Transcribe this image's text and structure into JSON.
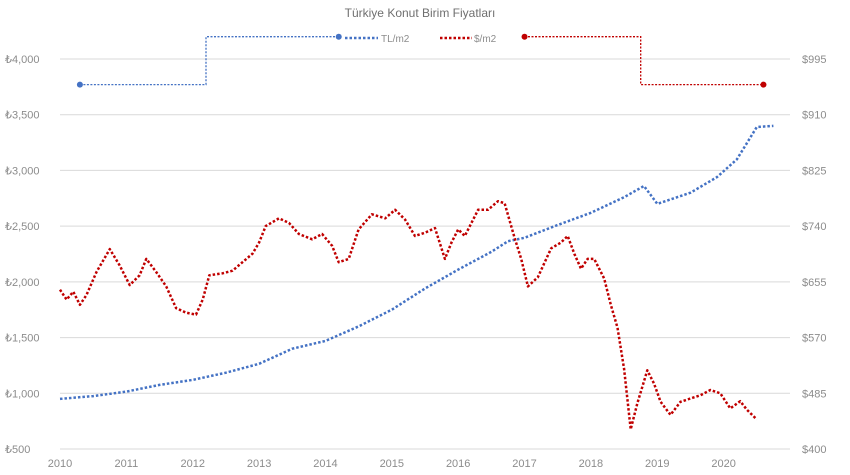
{
  "chart_data": {
    "type": "line",
    "title": "Türkiye Konut Birim Fiyatları",
    "legend_position": "top-center",
    "grid": true,
    "x_axis": {
      "ticks": [
        "2010",
        "2011",
        "2012",
        "2013",
        "2014",
        "2015",
        "2016",
        "2017",
        "2018",
        "2019",
        "2020"
      ],
      "range": [
        2010,
        2021
      ]
    },
    "y_left": {
      "range": [
        500,
        4000
      ],
      "ticks": [
        "₺500",
        "₺1,000",
        "₺1,500",
        "₺2,000",
        "₺2,500",
        "₺3,000",
        "₺3,500",
        "₺4,000"
      ]
    },
    "y_right": {
      "range": [
        400,
        995
      ],
      "ticks": [
        "$400",
        "$485",
        "$570",
        "$655",
        "$740",
        "$825",
        "$910",
        "$995"
      ]
    },
    "series": [
      {
        "name": "TL/m2",
        "axis": "left",
        "color": "#4472C4",
        "points": [
          [
            2010,
            950
          ],
          [
            2010.5,
            975
          ],
          [
            2011,
            1015
          ],
          [
            2011.5,
            1075
          ],
          [
            2012,
            1120
          ],
          [
            2012.5,
            1185
          ],
          [
            2013,
            1265
          ],
          [
            2013.5,
            1400
          ],
          [
            2014,
            1470
          ],
          [
            2014.5,
            1600
          ],
          [
            2015,
            1750
          ],
          [
            2015.5,
            1940
          ],
          [
            2016,
            2110
          ],
          [
            2016.5,
            2270
          ],
          [
            2016.75,
            2365
          ],
          [
            2017,
            2395
          ],
          [
            2017.5,
            2510
          ],
          [
            2018,
            2620
          ],
          [
            2018.5,
            2760
          ],
          [
            2018.8,
            2860
          ],
          [
            2019,
            2700
          ],
          [
            2019.5,
            2800
          ],
          [
            2019.9,
            2940
          ],
          [
            2020.2,
            3100
          ],
          [
            2020.5,
            3390
          ],
          [
            2020.75,
            3400
          ]
        ]
      },
      {
        "name": "$/m2",
        "axis": "right",
        "color": "#C00000",
        "points": [
          [
            2010,
            643
          ],
          [
            2010.1,
            628
          ],
          [
            2010.2,
            640
          ],
          [
            2010.3,
            620
          ],
          [
            2010.4,
            635
          ],
          [
            2010.55,
            670
          ],
          [
            2010.75,
            705
          ],
          [
            2010.9,
            680
          ],
          [
            2011.05,
            650
          ],
          [
            2011.2,
            665
          ],
          [
            2011.3,
            690
          ],
          [
            2011.45,
            670
          ],
          [
            2011.6,
            648
          ],
          [
            2011.75,
            615
          ],
          [
            2011.9,
            608
          ],
          [
            2012.05,
            605
          ],
          [
            2012.15,
            628
          ],
          [
            2012.25,
            665
          ],
          [
            2012.45,
            668
          ],
          [
            2012.6,
            672
          ],
          [
            2012.75,
            685
          ],
          [
            2012.9,
            698
          ],
          [
            2013.0,
            715
          ],
          [
            2013.1,
            740
          ],
          [
            2013.3,
            752
          ],
          [
            2013.45,
            745
          ],
          [
            2013.6,
            728
          ],
          [
            2013.8,
            720
          ],
          [
            2013.95,
            728
          ],
          [
            2014.1,
            710
          ],
          [
            2014.2,
            685
          ],
          [
            2014.35,
            690
          ],
          [
            2014.5,
            735
          ],
          [
            2014.7,
            758
          ],
          [
            2014.9,
            752
          ],
          [
            2015.05,
            765
          ],
          [
            2015.2,
            750
          ],
          [
            2015.35,
            725
          ],
          [
            2015.5,
            730
          ],
          [
            2015.65,
            737
          ],
          [
            2015.8,
            690
          ],
          [
            2015.9,
            715
          ],
          [
            2016.0,
            735
          ],
          [
            2016.1,
            725
          ],
          [
            2016.3,
            765
          ],
          [
            2016.45,
            765
          ],
          [
            2016.6,
            778
          ],
          [
            2016.7,
            775
          ],
          [
            2016.85,
            722
          ],
          [
            2016.95,
            690
          ],
          [
            2017.05,
            648
          ],
          [
            2017.2,
            662
          ],
          [
            2017.4,
            706
          ],
          [
            2017.55,
            715
          ],
          [
            2017.65,
            725
          ],
          [
            2017.75,
            698
          ],
          [
            2017.85,
            675
          ],
          [
            2017.95,
            690
          ],
          [
            2018.05,
            690
          ],
          [
            2018.2,
            660
          ],
          [
            2018.3,
            620
          ],
          [
            2018.4,
            585
          ],
          [
            2018.5,
            522
          ],
          [
            2018.6,
            430
          ],
          [
            2018.7,
            470
          ],
          [
            2018.85,
            520
          ],
          [
            2018.95,
            500
          ],
          [
            2019.05,
            472
          ],
          [
            2019.2,
            452
          ],
          [
            2019.35,
            472
          ],
          [
            2019.5,
            477
          ],
          [
            2019.65,
            482
          ],
          [
            2019.8,
            490
          ],
          [
            2019.95,
            485
          ],
          [
            2020.1,
            462
          ],
          [
            2020.25,
            473
          ],
          [
            2020.35,
            460
          ],
          [
            2020.5,
            445
          ]
        ]
      }
    ],
    "legend_marker_lines": [
      {
        "series": "TL/m2",
        "color": "#4472C4",
        "points": [
          [
            2010.3,
            3770
          ],
          [
            2012.2,
            3770
          ],
          [
            2012.2,
            4200
          ],
          [
            2014.2,
            4200
          ]
        ]
      },
      {
        "series": "$/m2",
        "color": "#C00000",
        "points": [
          [
            2017.0,
            4200
          ],
          [
            2018.75,
            4200
          ],
          [
            2018.75,
            3770
          ],
          [
            2020.6,
            3770
          ]
        ]
      }
    ]
  }
}
